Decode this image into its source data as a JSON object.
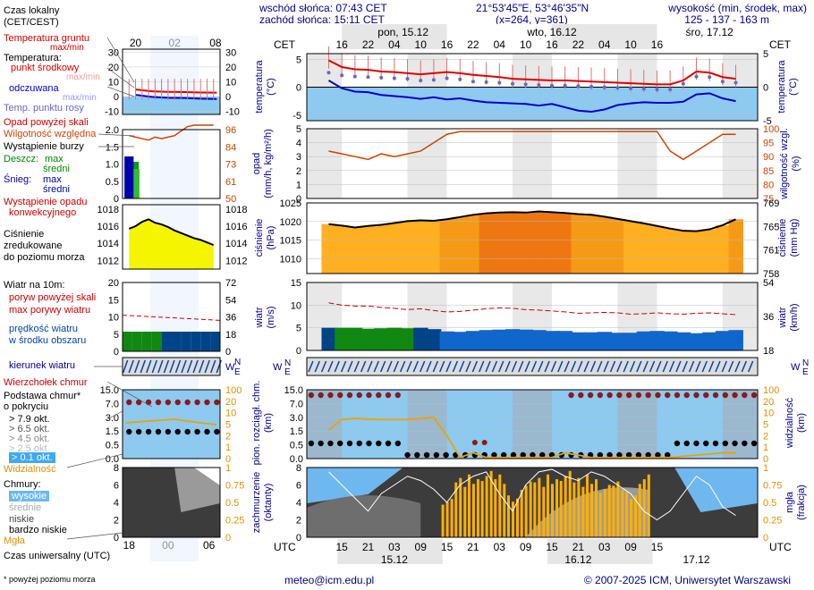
{
  "header": {
    "sunrise": "wschód słońca: 07:43 CET",
    "sunset": "zachód słońca: 15:11 CET",
    "coords": "21°53'45\"E, 53°46'35\"N",
    "grid": "(x=264,  y=361)",
    "elev_label": "wysokość (min, środek, max)",
    "elev_values": "125 - 137 - 163 m",
    "day1": "pon, 15.12",
    "day2": "wto, 16.12",
    "day3": "śro, 17.12",
    "tz_top": "CET",
    "tz_bottom": "UTC"
  },
  "left": {
    "time_label": "Czas lokalny\n(CET/CEST)",
    "top_ticks": [
      "20",
      "02",
      "08"
    ],
    "bottom_ticks": [
      "18",
      "00",
      "06"
    ],
    "utc_label": "Czas uniwersalny (UTC)",
    "footnote": "* powyżej poziomu morza",
    "legends": {
      "ground_temp": "Temperatura gruntu",
      "ground_temp_sub": "max/min",
      "temp": "Temperatura:",
      "temp_mid": "punkt środkowy",
      "temp_mid_sub": "max/min",
      "feels": "odczuwana",
      "feels_sub": "max/min",
      "dew": "Temp. punktu rosy",
      "precip_above": "Opad powyżej skali",
      "humidity": "Wilgotność względna",
      "storm": "Wystąpienie burzy",
      "rain": "Deszcz:",
      "rain_max": "max",
      "rain_mean": "średni",
      "snow": "Śnieg:",
      "snow_max": "max",
      "snow_mean": "średni",
      "precip_conv": "Wystąpienie opadu",
      "precip_conv2": "konwekcyjnego",
      "pressure1": "Ciśnienie",
      "pressure2": "zredukowane",
      "pressure3": "do poziomu morza",
      "wind10": "Wiatr na 10m:",
      "gust_above": "poryw powyżej skali",
      "gust_max": "max porywy wiatru",
      "wind_speed": "prędkość wiatru",
      "wind_speed2": "w środku obszaru",
      "wind_dir": "kierunek wiatru",
      "cloud_top": "Wierzchołek chmur",
      "cloud_base": "Podstawa chmur*",
      "cloud_base2": "o pokryciu",
      "okt79": "> 7.9 okt.",
      "okt65": "> 6.5 okt.",
      "okt45": "> 4.5 okt.",
      "okt25": "> 2.5 okt.",
      "okt01": "> 0.1 okt.",
      "visibility": "Widzialność",
      "clouds": "Chmury:",
      "high": "wysokie",
      "mid": "średnie",
      "low": "niskie",
      "very_low": "bardzo niskie",
      "fog": "Mgła"
    }
  },
  "axes": {
    "temp_title": "temperatura\n(°C)",
    "precip_title": "opad\n(mm/h, kg/m²/h)",
    "humid_title": "wilgotność wzgl.\n(%)",
    "press_title": "ciśnienie\n(hPa)",
    "press_title_r": "ciśnienie\n(mm Hg)",
    "wind_title": "wiatr\n(m/s)",
    "wind_title_r": "wiatr\n(km/h)",
    "cloud_title": "pion. rozciągł. chm.\n(km)",
    "vis_title": "widzialność\n(km)",
    "cover_title": "zachmurzenie\n(oktanty)",
    "fog_title": "mgła\n(frakcja)",
    "dir_letters": [
      "N",
      "W",
      "E",
      "S"
    ]
  },
  "footer": {
    "email": "meteo@icm.edu.pl",
    "copyright": "© 2007-2025 ICM, Uniwersytet Warszawski"
  },
  "colors": {
    "temp": "#e00000",
    "feels": "#0000cc",
    "dew": "#6666cc",
    "humidity": "#cc4400",
    "pressure": "#ffd200",
    "wind": "#0044aa",
    "gust": "#cc0000",
    "fog": "#ffb000",
    "dark_red_dot": "#8b1a1a",
    "axis_blue": "#00008b"
  },
  "chart_data": [
    {
      "type": "line",
      "title": "temperatura",
      "x_hours_cet": [
        13,
        16,
        19,
        22,
        25,
        28,
        31,
        34,
        37,
        40,
        43,
        46,
        49,
        52,
        55,
        58,
        61,
        64,
        67,
        70,
        73,
        76,
        79,
        82,
        85,
        88,
        91,
        94,
        97,
        100,
        103,
        106
      ],
      "x_ticks_cet": [
        "16",
        "22",
        "04",
        "10",
        "16",
        "22",
        "04",
        "10",
        "16",
        "22",
        "04",
        "10",
        "16"
      ],
      "x_ticks_utc": [
        "15",
        "21",
        "03",
        "09",
        "15",
        "21",
        "03",
        "09",
        "15",
        "21",
        "03",
        "09",
        "15"
      ],
      "ylim": [
        -6,
        6
      ],
      "yticks": [
        -5,
        0,
        5
      ],
      "series": [
        {
          "name": "punkt środkowy",
          "values": [
            4.8,
            3.6,
            3.2,
            3.1,
            2.8,
            2.7,
            2.5,
            2.3,
            2.5,
            2.7,
            2.5,
            2.2,
            2.0,
            1.8,
            1.5,
            1.4,
            1.3,
            1.2,
            1.2,
            1.1,
            1.0,
            0.9,
            0.8,
            0.7,
            0.6,
            0.5,
            0.5,
            1.2,
            2.8,
            2.6,
            1.8,
            1.5
          ]
        },
        {
          "name": "odczuwana",
          "values": [
            1.2,
            -0.2,
            -0.8,
            -0.9,
            -1.4,
            -1.6,
            -1.8,
            -2.1,
            -1.8,
            -2.2,
            -2.0,
            -2.4,
            -2.7,
            -2.8,
            -2.9,
            -3.0,
            -3.3,
            -3.0,
            -3.6,
            -4.2,
            -4.4,
            -4.0,
            -3.2,
            -2.9,
            -2.7,
            -2.8,
            -2.8,
            -2.6,
            -1.3,
            -1.1,
            -2.0,
            -2.5
          ]
        },
        {
          "name": "Temp. punktu rosy",
          "values": [
            2.6,
            2.1,
            1.9,
            1.8,
            1.7,
            1.6,
            1.5,
            1.2,
            1.3,
            1.6,
            1.4,
            1.0,
            0.9,
            0.8,
            0.6,
            0.5,
            0.4,
            0.3,
            0.3,
            0.2,
            0.1,
            0.0,
            -0.1,
            -0.2,
            -0.3,
            -0.4,
            -0.4,
            0.6,
            1.9,
            1.8,
            1.0,
            0.8
          ]
        }
      ]
    },
    {
      "type": "line",
      "title": "opad / wilgotność",
      "ylim": [
        0,
        5
      ],
      "yticks": [
        0,
        1,
        2,
        3,
        4,
        5
      ],
      "y2lim": [
        75,
        100
      ],
      "y2ticks": [
        75,
        80,
        85,
        90,
        95,
        100
      ],
      "series": [
        {
          "name": "Wilgotność względna",
          "values": [
            92,
            91,
            90,
            89,
            91,
            90,
            91,
            92,
            95,
            98,
            99,
            99,
            99,
            99,
            99,
            99,
            99,
            99,
            99,
            99,
            99,
            99,
            99,
            99,
            99,
            99,
            92,
            89,
            92,
            95,
            98,
            98
          ]
        }
      ]
    },
    {
      "type": "area",
      "title": "ciśnienie",
      "ylim": [
        1006,
        1025
      ],
      "yticks": [
        1010,
        1015,
        1020,
        1025
      ],
      "y2ticks": [
        758,
        761,
        765,
        769
      ],
      "series": [
        {
          "name": "Ciśnienie",
          "values": [
            1019.3,
            1018.9,
            1018.4,
            1018.8,
            1019.1,
            1019.6,
            1020.1,
            1020.3,
            1020.2,
            1020.6,
            1021.2,
            1021.8,
            1022.2,
            1022.4,
            1022.5,
            1022.4,
            1022.7,
            1022.5,
            1022.3,
            1022.0,
            1021.8,
            1021.3,
            1020.7,
            1020.1,
            1019.5,
            1018.8,
            1018.1,
            1017.5,
            1017.4,
            1017.9,
            1019.0,
            1020.6
          ]
        }
      ]
    },
    {
      "type": "bar",
      "title": "wiatr",
      "ylim": [
        0,
        15
      ],
      "yticks": [
        0,
        5,
        10,
        15
      ],
      "y2ticks": [
        18,
        36,
        54
      ],
      "series": [
        {
          "name": "prędkość wiatru",
          "values": [
            5.0,
            5.0,
            5.0,
            4.8,
            4.9,
            5.0,
            4.9,
            5.0,
            4.7,
            4.2,
            4.1,
            4.3,
            4.5,
            4.6,
            4.7,
            4.6,
            4.5,
            4.3,
            4.3,
            4.0,
            4.0,
            4.1,
            3.9,
            3.9,
            4.2,
            4.3,
            4.2,
            4.0,
            3.8,
            4.0,
            4.3,
            4.5
          ]
        },
        {
          "name": "max porywy wiatru",
          "values": [
            10.5,
            10.0,
            9.8,
            9.8,
            9.5,
            9.3,
            9.0,
            9.2,
            8.8,
            8.5,
            8.6,
            8.9,
            9.2,
            9.4,
            9.3,
            9.0,
            8.9,
            8.7,
            8.5,
            8.2,
            8.3,
            8.4,
            8.3,
            8.0,
            8.1,
            8.3,
            8.1,
            8.0,
            8.2,
            8.3,
            8.1,
            7.9
          ]
        }
      ]
    },
    {
      "type": "line",
      "title": "chmury / widzialność",
      "y_ticks": [
        "0.0",
        "0.5",
        "1.5",
        "3.0",
        "7.0",
        "15.0"
      ],
      "y2_ticks": [
        "0",
        "1",
        "2",
        "5",
        "10",
        "20",
        "100"
      ],
      "series": [
        {
          "name": "Widzialność",
          "values": [
            3.5,
            7.0,
            7.5,
            7.2,
            7.0,
            7.0,
            7.0,
            7.5,
            8.0,
            2.0,
            0.1,
            0.5,
            0.1,
            0.1,
            0.1,
            0.1,
            0.1,
            0.1,
            0.5,
            0.3,
            0.1,
            0.1,
            0.1,
            0.1,
            0.1,
            0.1,
            0.1,
            0.2,
            0.3,
            0.4,
            0.5,
            0.5
          ]
        }
      ]
    },
    {
      "type": "bar",
      "title": "zachmurzenie",
      "ylim": [
        0,
        8
      ],
      "yticks": [
        0,
        2,
        4,
        6,
        8
      ],
      "y2ticks": [
        "0",
        "0.25",
        "0.5",
        "0.75",
        "1"
      ],
      "series": [
        {
          "name": "Mgła",
          "values": [
            0,
            0,
            0,
            0,
            0,
            0,
            0,
            0,
            0,
            0.55,
            0.85,
            0.9,
            0.95,
            0.9,
            0.6,
            0.8,
            0.85,
            0.9,
            0.95,
            0.85,
            0.9,
            0.75,
            0.8,
            0.65,
            0.9,
            0,
            0,
            0,
            0,
            0,
            0,
            0
          ]
        }
      ]
    }
  ]
}
